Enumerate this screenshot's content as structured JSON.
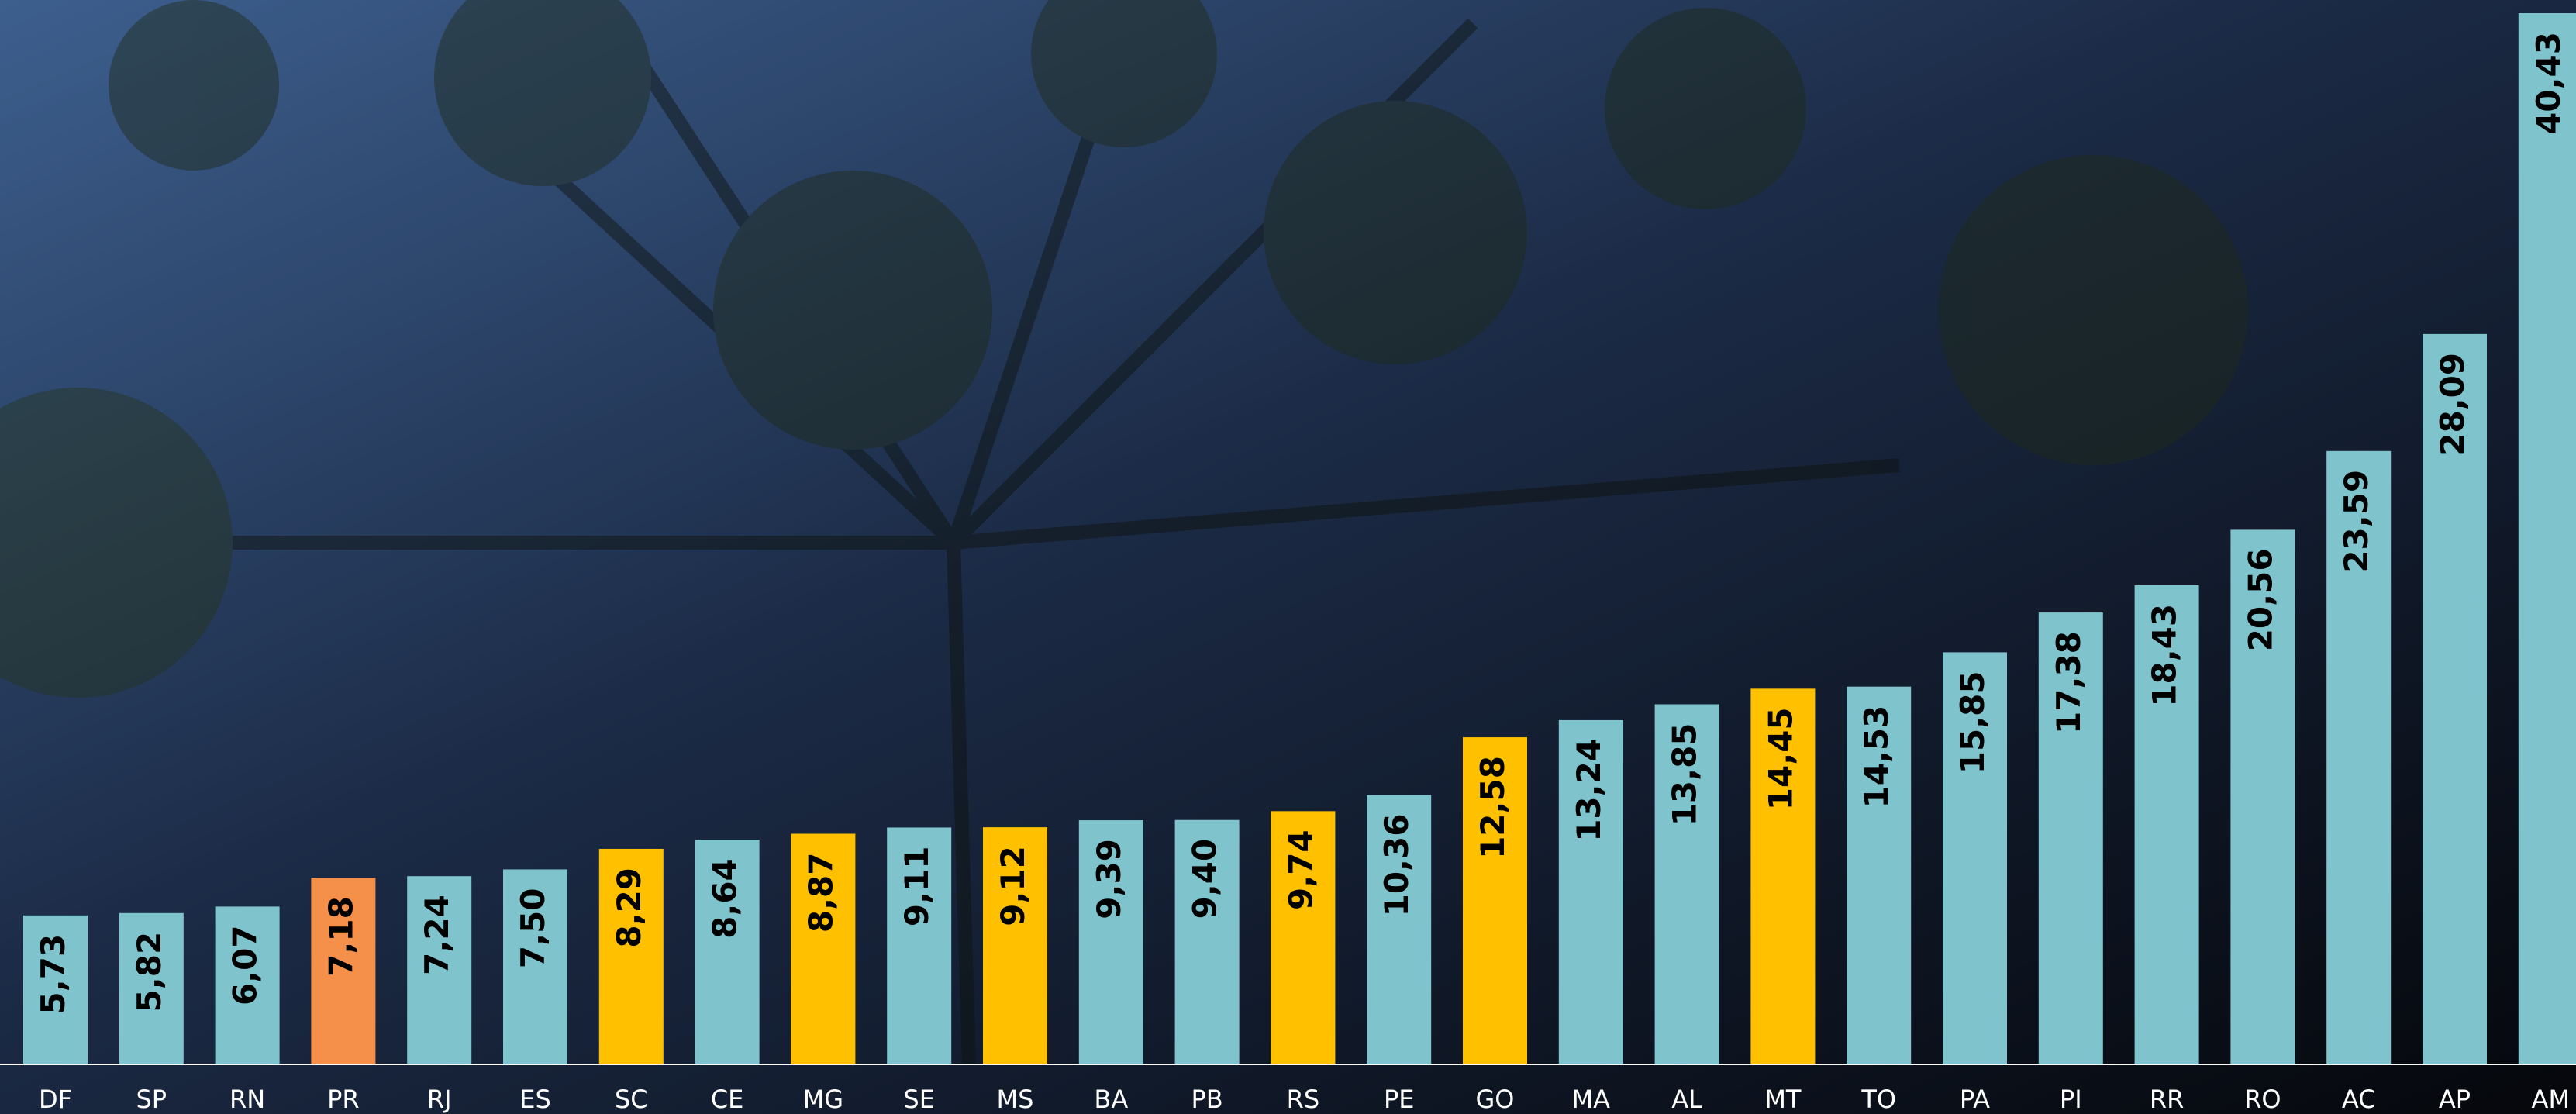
{
  "chart_data": {
    "type": "bar",
    "categories": [
      "DF",
      "SP",
      "RN",
      "PR",
      "RJ",
      "ES",
      "SC",
      "CE",
      "MG",
      "SE",
      "MS",
      "BA",
      "PB",
      "RS",
      "PE",
      "GO",
      "MA",
      "AL",
      "MT",
      "TO",
      "PA",
      "PI",
      "RR",
      "RO",
      "AC",
      "AP",
      "AM"
    ],
    "values": [
      5.73,
      5.82,
      6.07,
      7.18,
      7.24,
      7.5,
      8.29,
      8.64,
      8.87,
      9.11,
      9.12,
      9.39,
      9.4,
      9.74,
      10.36,
      12.58,
      13.24,
      13.85,
      14.45,
      14.53,
      15.85,
      17.38,
      18.43,
      20.56,
      23.59,
      28.09,
      40.43
    ],
    "value_labels": [
      "5,73",
      "5,82",
      "6,07",
      "7,18",
      "7,24",
      "7,50",
      "8,29",
      "8,64",
      "8,87",
      "9,11",
      "9,12",
      "9,39",
      "9,40",
      "9,74",
      "10,36",
      "12,58",
      "13,24",
      "13,85",
      "14,45",
      "14,53",
      "15,85",
      "17,38",
      "18,43",
      "20,56",
      "23,59",
      "28,09",
      "40,43"
    ],
    "colors": [
      "#7fc4cc",
      "#7fc4cc",
      "#7fc4cc",
      "#f5904a",
      "#7fc4cc",
      "#7fc4cc",
      "#ffc000",
      "#7fc4cc",
      "#ffc000",
      "#7fc4cc",
      "#ffc000",
      "#7fc4cc",
      "#7fc4cc",
      "#ffc000",
      "#7fc4cc",
      "#ffc000",
      "#7fc4cc",
      "#7fc4cc",
      "#ffc000",
      "#7fc4cc",
      "#7fc4cc",
      "#7fc4cc",
      "#7fc4cc",
      "#7fc4cc",
      "#7fc4cc",
      "#7fc4cc",
      "#7fc4cc"
    ]
  }
}
